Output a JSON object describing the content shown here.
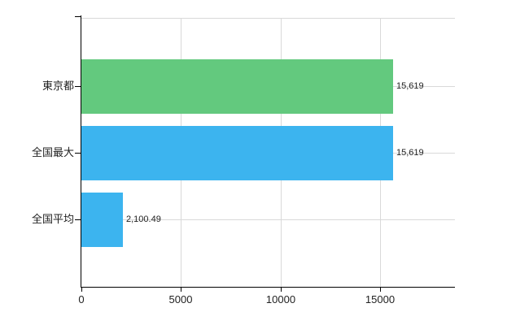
{
  "chart_data": {
    "type": "bar",
    "orientation": "horizontal",
    "title": "",
    "xlabel": "",
    "ylabel": "",
    "categories": [
      "東京都",
      "全国最大",
      "全国平均"
    ],
    "values": [
      15619,
      15619,
      2100.49
    ],
    "value_labels": [
      "15,619",
      "15,619",
      "2,100.49"
    ],
    "bar_colors": [
      "#63c97e",
      "#3cb4ef",
      "#3cb4ef"
    ],
    "xlim": [
      0,
      18742.8
    ],
    "x_ticks": [
      0,
      5000,
      10000,
      15000
    ],
    "x_tick_labels": [
      "0",
      "5000",
      "10000",
      "15000"
    ],
    "grid": true,
    "legend": false
  },
  "colors": {
    "background": "#ffffff",
    "axis": "#000000",
    "grid": "#d9d9d9",
    "text": "#222222"
  }
}
